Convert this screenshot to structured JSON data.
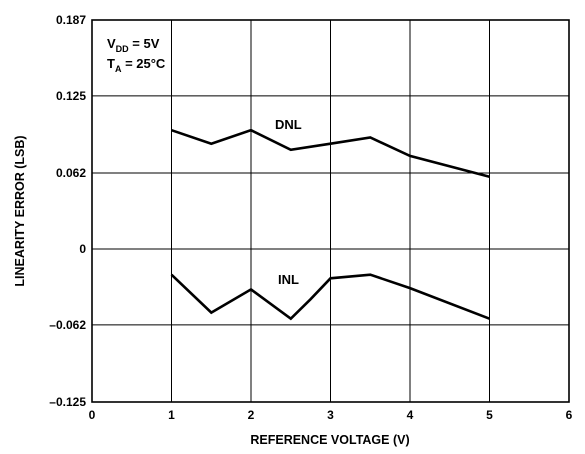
{
  "chart_data": {
    "type": "line",
    "xlabel": "REFERENCE VOLTAGE (V)",
    "ylabel": "LINEARITY ERROR (LSB)",
    "xlim": [
      0,
      6
    ],
    "ylim": [
      -0.125,
      0.187
    ],
    "x_ticks": [
      0,
      1,
      2,
      3,
      4,
      5,
      6
    ],
    "x_tick_labels": [
      "0",
      "1",
      "2",
      "3",
      "4",
      "5",
      "6"
    ],
    "y_ticks": [
      -0.125,
      -0.062,
      0,
      0.062,
      0.125,
      0.187
    ],
    "y_tick_labels": [
      "–0.125",
      "–0.062",
      "0",
      "0.062",
      "0.125",
      "0.187"
    ],
    "grid": true,
    "annotations": {
      "vdd_main": "V",
      "vdd_sub": "DD",
      "vdd_rest": " = 5V",
      "ta_main": "T",
      "ta_sub": "A",
      "ta_rest": " = 25°C"
    },
    "series": [
      {
        "name": "DNL",
        "x": [
          1,
          1.5,
          2,
          2.5,
          3,
          3.5,
          4,
          5
        ],
        "y": [
          0.097,
          0.086,
          0.097,
          0.081,
          0.086,
          0.091,
          0.076,
          0.059
        ]
      },
      {
        "name": "INL",
        "x": [
          1,
          1.5,
          2,
          2.5,
          2.75,
          3,
          3.5,
          4,
          5
        ],
        "y": [
          -0.021,
          -0.052,
          -0.033,
          -0.057,
          -0.041,
          -0.024,
          -0.021,
          -0.032,
          -0.057
        ]
      }
    ]
  }
}
